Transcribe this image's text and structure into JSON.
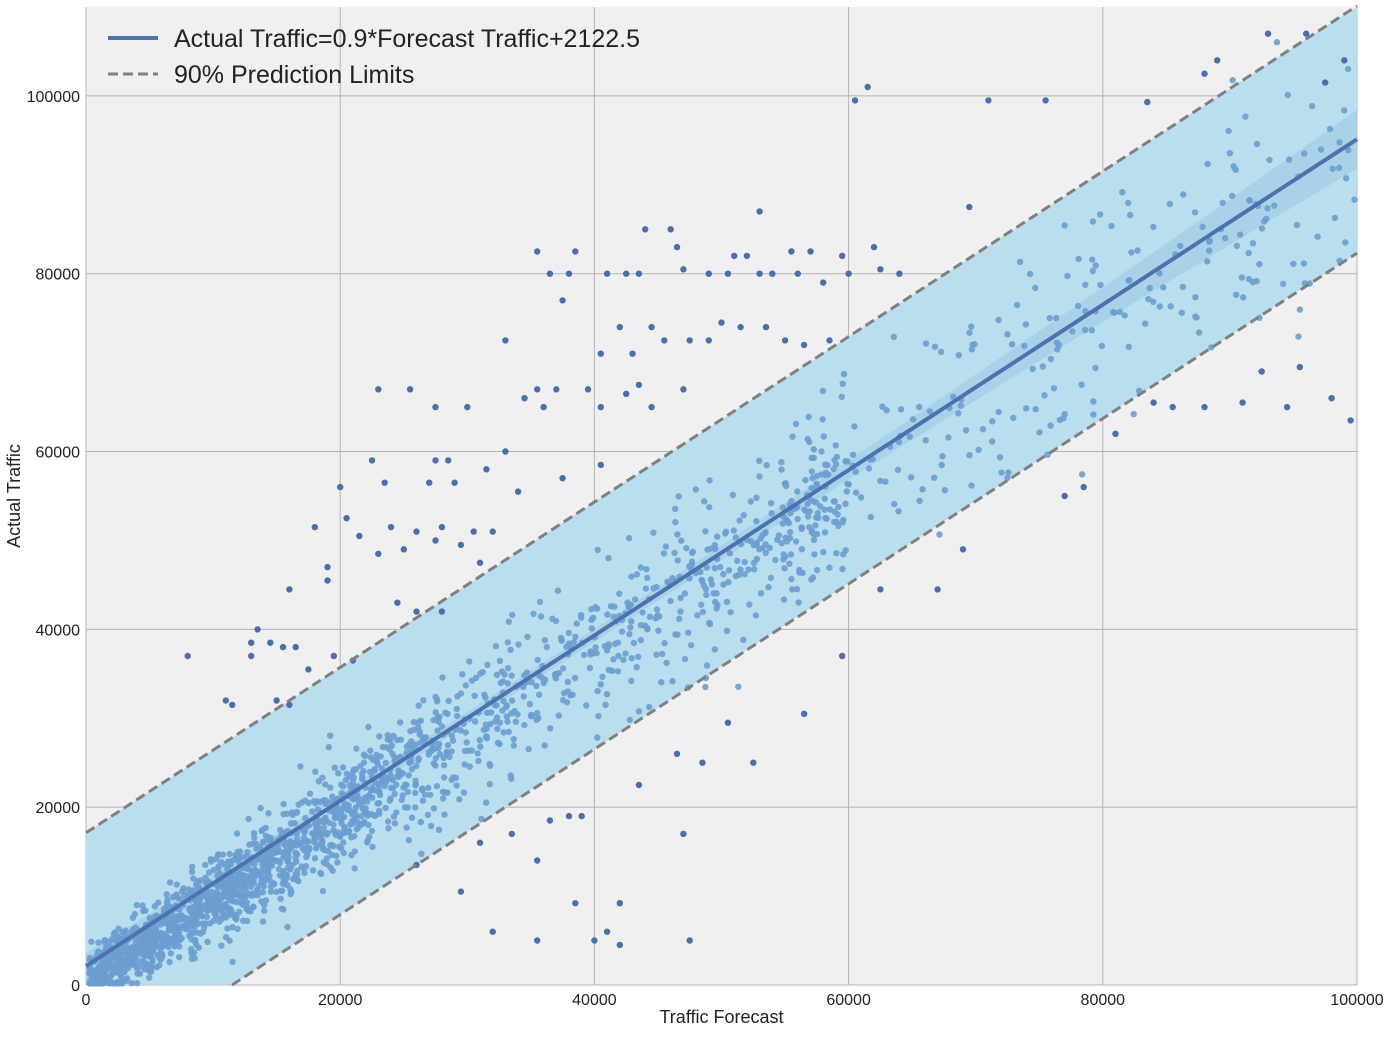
{
  "chart_data": {
    "type": "scatter",
    "xlabel": "Traffic Forecast",
    "ylabel": "Actual Traffic",
    "xlim": [
      0,
      100000
    ],
    "ylim": [
      0,
      110000
    ],
    "x_ticks": [
      "0",
      "20000",
      "40000",
      "60000",
      "80000",
      "100000"
    ],
    "y_ticks": [
      "0",
      "20000",
      "40000",
      "60000",
      "80000",
      "100000"
    ],
    "grid": true,
    "legend_position": "top-left",
    "regression": {
      "label": "Actual Traffic=0.9*Forecast Traffic+2122.5",
      "slope": 0.93,
      "intercept": 2122.5
    },
    "prediction_limits": {
      "label": "90% Prediction Limits",
      "upper_offset": 15000,
      "lower_offset": -12800
    },
    "outlier_points": [
      [
        93000,
        107000
      ],
      [
        96000,
        107000
      ],
      [
        99000,
        104000
      ],
      [
        97500,
        101500
      ],
      [
        89000,
        104000
      ],
      [
        88000,
        102500
      ],
      [
        71000,
        99500
      ],
      [
        75500,
        99500
      ],
      [
        83500,
        99300
      ],
      [
        60500,
        99500
      ],
      [
        61500,
        101000
      ],
      [
        69500,
        87500
      ],
      [
        53000,
        87000
      ],
      [
        44000,
        85000
      ],
      [
        46000,
        85000
      ],
      [
        46500,
        83000
      ],
      [
        35500,
        82500
      ],
      [
        38500,
        82500
      ],
      [
        51000,
        82000
      ],
      [
        52000,
        82000
      ],
      [
        55500,
        82500
      ],
      [
        57000,
        82500
      ],
      [
        59500,
        82000
      ],
      [
        62000,
        83000
      ],
      [
        36500,
        80000
      ],
      [
        38000,
        80000
      ],
      [
        41000,
        80000
      ],
      [
        42500,
        80000
      ],
      [
        43500,
        80000
      ],
      [
        47000,
        80500
      ],
      [
        49000,
        80000
      ],
      [
        50500,
        80000
      ],
      [
        53000,
        80000
      ],
      [
        54000,
        80000
      ],
      [
        56000,
        80000
      ],
      [
        58000,
        79000
      ],
      [
        60000,
        80000
      ],
      [
        62500,
        80500
      ],
      [
        64000,
        80000
      ],
      [
        37500,
        77000
      ],
      [
        42000,
        74000
      ],
      [
        44500,
        74000
      ],
      [
        50000,
        74500
      ],
      [
        51500,
        74000
      ],
      [
        53500,
        74000
      ],
      [
        56500,
        72000
      ],
      [
        58500,
        72500
      ],
      [
        33000,
        72500
      ],
      [
        40500,
        71000
      ],
      [
        43000,
        71000
      ],
      [
        45500,
        72500
      ],
      [
        47500,
        72500
      ],
      [
        49000,
        72500
      ],
      [
        55000,
        72500
      ],
      [
        23000,
        67000
      ],
      [
        25500,
        67000
      ],
      [
        35500,
        67000
      ],
      [
        37000,
        67000
      ],
      [
        39500,
        67000
      ],
      [
        43500,
        67500
      ],
      [
        47000,
        67000
      ],
      [
        27500,
        65000
      ],
      [
        30000,
        65000
      ],
      [
        34500,
        66000
      ],
      [
        36000,
        65000
      ],
      [
        40500,
        65000
      ],
      [
        42500,
        66500
      ],
      [
        44500,
        65000
      ],
      [
        20000,
        56000
      ],
      [
        23500,
        56500
      ],
      [
        27000,
        56500
      ],
      [
        29000,
        56500
      ],
      [
        34000,
        55500
      ],
      [
        37500,
        57000
      ],
      [
        31500,
        58000
      ],
      [
        33000,
        60000
      ],
      [
        40500,
        58500
      ],
      [
        22500,
        59000
      ],
      [
        27500,
        59000
      ],
      [
        28500,
        59000
      ],
      [
        20500,
        52500
      ],
      [
        24000,
        51500
      ],
      [
        26000,
        51000
      ],
      [
        28000,
        51500
      ],
      [
        30500,
        51000
      ],
      [
        32000,
        51000
      ],
      [
        18000,
        51500
      ],
      [
        19000,
        47000
      ],
      [
        19000,
        45500
      ],
      [
        16000,
        44500
      ],
      [
        21500,
        50500
      ],
      [
        23000,
        48500
      ],
      [
        25000,
        49000
      ],
      [
        27500,
        50000
      ],
      [
        29500,
        49500
      ],
      [
        31000,
        47500
      ],
      [
        24500,
        43000
      ],
      [
        26000,
        42000
      ],
      [
        28000,
        42000
      ],
      [
        13500,
        40000
      ],
      [
        13000,
        38500
      ],
      [
        14500,
        38500
      ],
      [
        15500,
        38000
      ],
      [
        16500,
        38000
      ],
      [
        13000,
        37000
      ],
      [
        17500,
        35500
      ],
      [
        19500,
        37000
      ],
      [
        21000,
        36500
      ],
      [
        11500,
        31500
      ],
      [
        11000,
        32000
      ],
      [
        15000,
        32000
      ],
      [
        16000,
        31500
      ],
      [
        8000,
        37000
      ],
      [
        47000,
        17000
      ],
      [
        35500,
        14000
      ],
      [
        42000,
        9200
      ],
      [
        38500,
        9200
      ],
      [
        40000,
        5000
      ],
      [
        41000,
        6000
      ],
      [
        42000,
        4500
      ],
      [
        47500,
        5000
      ],
      [
        35500,
        5000
      ],
      [
        32000,
        6000
      ],
      [
        29500,
        10500
      ],
      [
        26000,
        13500
      ],
      [
        31000,
        16000
      ],
      [
        33500,
        17000
      ],
      [
        36500,
        18500
      ],
      [
        38000,
        19000
      ],
      [
        39000,
        19000
      ],
      [
        43500,
        22500
      ],
      [
        46500,
        26000
      ],
      [
        48500,
        25000
      ],
      [
        52500,
        25000
      ],
      [
        50500,
        29500
      ],
      [
        56500,
        30500
      ],
      [
        59500,
        37000
      ],
      [
        67000,
        44500
      ],
      [
        69000,
        49000
      ],
      [
        62500,
        44500
      ],
      [
        84000,
        65500
      ],
      [
        85500,
        65000
      ],
      [
        88000,
        65000
      ],
      [
        91000,
        65500
      ],
      [
        94500,
        65000
      ],
      [
        95500,
        69500
      ],
      [
        92500,
        69000
      ],
      [
        98000,
        66000
      ],
      [
        99500,
        63500
      ],
      [
        78500,
        56000
      ],
      [
        77000,
        55000
      ],
      [
        81000,
        62000
      ]
    ],
    "band_point_count": 2200,
    "colors": {
      "band": "#b9dfee",
      "ci_band": "#a9d2e8",
      "line": "#4c72b0",
      "limits": "#808080",
      "outlier_point": "#4a6fb0",
      "band_point": "#6b9fd0",
      "plot_bg": "#f0f0f0",
      "grid": "#b4b4b4"
    }
  }
}
